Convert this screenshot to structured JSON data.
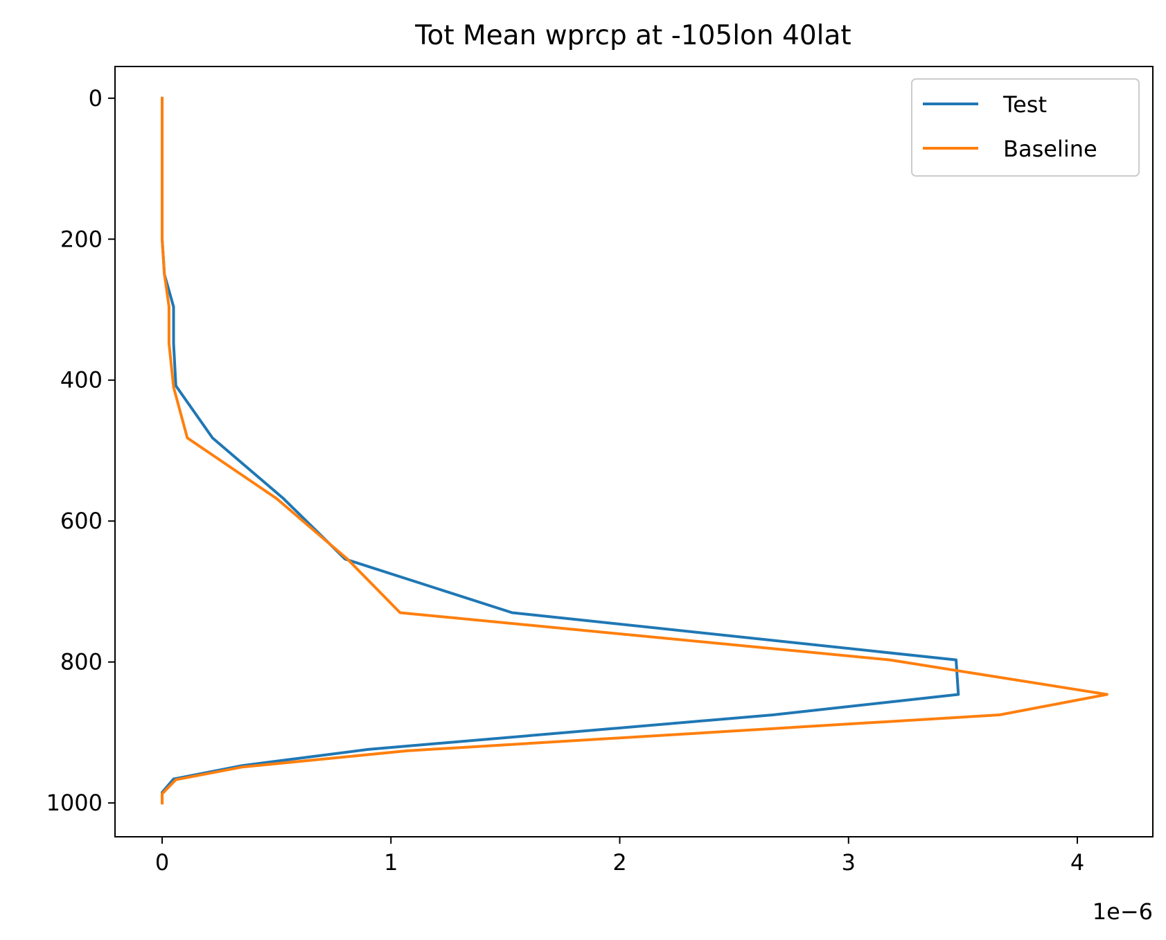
{
  "chart_data": {
    "type": "line",
    "title": "Tot Mean wprcp at -105lon 40lat",
    "xlabel": "",
    "ylabel": "",
    "x_offset_label": "1e−6",
    "xlim": [
      -0.206,
      4.33
    ],
    "ylim": [
      1048,
      -45
    ],
    "y_inverted": true,
    "x_ticks": [
      0,
      1,
      2,
      3,
      4
    ],
    "x_tick_labels": [
      "0",
      "1",
      "2",
      "3",
      "4"
    ],
    "y_ticks": [
      0,
      200,
      400,
      600,
      800,
      1000
    ],
    "y_tick_labels": [
      "0",
      "200",
      "400",
      "600",
      "800",
      "1000"
    ],
    "grid": false,
    "legend_position": "top-right",
    "colors": {
      "test": "#1f77b4",
      "baseline": "#ff7f0e"
    },
    "series": [
      {
        "name": "Test",
        "color": "#1f77b4",
        "points": [
          {
            "x": 0.0,
            "y": 0
          },
          {
            "x": 0.0,
            "y": 50
          },
          {
            "x": 0.0,
            "y": 100
          },
          {
            "x": 0.0,
            "y": 150
          },
          {
            "x": 0.0,
            "y": 200
          },
          {
            "x": 0.01,
            "y": 250
          },
          {
            "x": 0.05,
            "y": 296
          },
          {
            "x": 0.05,
            "y": 348
          },
          {
            "x": 0.06,
            "y": 408
          },
          {
            "x": 0.22,
            "y": 482
          },
          {
            "x": 0.53,
            "y": 568
          },
          {
            "x": 0.8,
            "y": 654
          },
          {
            "x": 1.53,
            "y": 730
          },
          {
            "x": 3.47,
            "y": 797
          },
          {
            "x": 3.48,
            "y": 846
          },
          {
            "x": 2.67,
            "y": 875
          },
          {
            "x": 0.9,
            "y": 924
          },
          {
            "x": 0.35,
            "y": 947
          },
          {
            "x": 0.05,
            "y": 966
          },
          {
            "x": 0.0,
            "y": 985
          },
          {
            "x": 0.0,
            "y": 1000
          }
        ]
      },
      {
        "name": "Baseline",
        "color": "#ff7f0e",
        "points": [
          {
            "x": 0.0,
            "y": 0
          },
          {
            "x": 0.0,
            "y": 50
          },
          {
            "x": 0.0,
            "y": 100
          },
          {
            "x": 0.0,
            "y": 150
          },
          {
            "x": 0.0,
            "y": 200
          },
          {
            "x": 0.01,
            "y": 250
          },
          {
            "x": 0.03,
            "y": 296
          },
          {
            "x": 0.03,
            "y": 348
          },
          {
            "x": 0.05,
            "y": 410
          },
          {
            "x": 0.11,
            "y": 482
          },
          {
            "x": 0.5,
            "y": 568
          },
          {
            "x": 0.81,
            "y": 654
          },
          {
            "x": 1.04,
            "y": 730
          },
          {
            "x": 3.18,
            "y": 797
          },
          {
            "x": 4.13,
            "y": 846
          },
          {
            "x": 3.66,
            "y": 875
          },
          {
            "x": 1.07,
            "y": 926
          },
          {
            "x": 0.35,
            "y": 949
          },
          {
            "x": 0.06,
            "y": 967
          },
          {
            "x": 0.0,
            "y": 987
          },
          {
            "x": 0.0,
            "y": 1000
          }
        ]
      }
    ]
  }
}
